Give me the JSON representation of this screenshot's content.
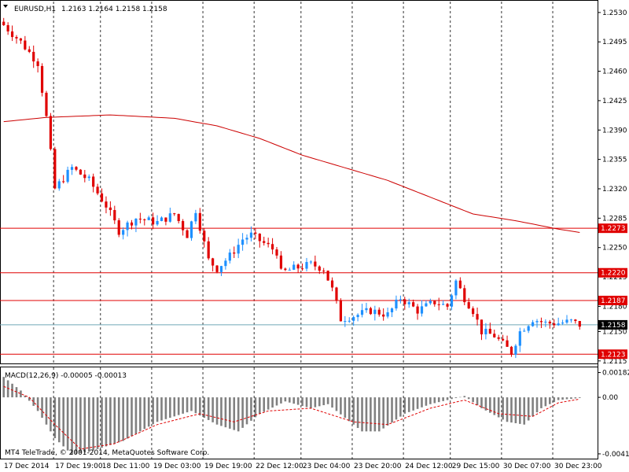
{
  "header": {
    "symbol": "EURUSD,H1",
    "ohlc": "1.2163 1.2164 1.2158 1.2158"
  },
  "macd": {
    "label": "MACD(12,26,9) -0.00005 -0.00013"
  },
  "footer": {
    "copyright": "MT4 TeleTrade, © 2001-2014, MetaQuotes Software Corp."
  },
  "colors": {
    "bull": "#1e90ff",
    "bear": "#e00000",
    "ma": "#cc0000",
    "level": "#e00000",
    "bid": "#6fa8b8",
    "hist": "#808080",
    "signal": "#e00000",
    "grid": "#000000"
  },
  "icons": {
    "dropdown": "triangle-down-icon"
  },
  "chart_data": [
    {
      "type": "candlestick",
      "title": "EURUSD,H1 1.2163 1.2164 1.2158 1.2158",
      "ylim": [
        1.2112,
        1.2543
      ],
      "y_ticks": [
        "1.2530",
        "1.2495",
        "1.2460",
        "1.2425",
        "1.2390",
        "1.2355",
        "1.2320",
        "1.2285",
        "1.2250",
        "1.2215",
        "1.2180",
        "1.2150",
        "1.2115"
      ],
      "x_ticks": [
        "17 Dec 2014",
        "17 Dec 19:00",
        "18 Dec 11:00",
        "19 Dec 03:00",
        "19 Dec 19:00",
        "22 Dec 12:00",
        "23 Dec 04:00",
        "23 Dec 20:00",
        "24 Dec 12:00",
        "29 Dec 15:00",
        "30 Dec 07:00",
        "30 Dec 23:00"
      ],
      "horizontal_levels": [
        "1.2273",
        "1.2220",
        "1.2187",
        "1.2123"
      ],
      "bid_price": "1.2158",
      "close_path": [
        [
          0,
          1.2515
        ],
        [
          4,
          1.2495
        ],
        [
          8,
          1.247
        ],
        [
          10,
          1.2405
        ],
        [
          12,
          1.232
        ],
        [
          16,
          1.2345
        ],
        [
          20,
          1.233
        ],
        [
          24,
          1.23
        ],
        [
          27,
          1.227
        ],
        [
          31,
          1.2285
        ],
        [
          36,
          1.228
        ],
        [
          40,
          1.229
        ],
        [
          43,
          1.2265
        ],
        [
          45,
          1.2295
        ],
        [
          48,
          1.2235
        ],
        [
          50,
          1.2225
        ],
        [
          53,
          1.224
        ],
        [
          56,
          1.226
        ],
        [
          58,
          1.2265
        ],
        [
          61,
          1.2255
        ],
        [
          64,
          1.2245
        ],
        [
          65,
          1.222
        ],
        [
          68,
          1.2225
        ],
        [
          72,
          1.223
        ],
        [
          75,
          1.2225
        ],
        [
          77,
          1.22
        ],
        [
          79,
          1.2165
        ],
        [
          83,
          1.217
        ],
        [
          86,
          1.2175
        ],
        [
          90,
          1.217
        ],
        [
          93,
          1.219
        ],
        [
          97,
          1.2175
        ],
        [
          101,
          1.2185
        ],
        [
          104,
          1.218
        ],
        [
          106,
          1.221
        ],
        [
          108,
          1.219
        ],
        [
          110,
          1.2175
        ],
        [
          112,
          1.215
        ],
        [
          115,
          1.2145
        ],
        [
          117,
          1.2135
        ],
        [
          119,
          1.2125
        ],
        [
          121,
          1.215
        ],
        [
          124,
          1.2165
        ],
        [
          127,
          1.216
        ],
        [
          130,
          1.216
        ],
        [
          133,
          1.2162
        ],
        [
          135,
          1.2158
        ]
      ],
      "ma_series": [
        [
          0,
          1.24
        ],
        [
          10,
          1.2405
        ],
        [
          25,
          1.2408
        ],
        [
          40,
          1.2404
        ],
        [
          50,
          1.2395
        ],
        [
          60,
          1.238
        ],
        [
          70,
          1.236
        ],
        [
          80,
          1.2345
        ],
        [
          90,
          1.233
        ],
        [
          100,
          1.231
        ],
        [
          110,
          1.229
        ],
        [
          120,
          1.2282
        ],
        [
          130,
          1.2272
        ],
        [
          135,
          1.2268
        ]
      ]
    },
    {
      "type": "bar",
      "title": "MACD(12,26,9) -0.00005 -0.00013",
      "ylim": [
        -0.0045,
        0.0022
      ],
      "y_ticks": [
        "0.00182",
        "0.00",
        "-0.00415"
      ],
      "histogram_path": [
        [
          0,
          0.0015
        ],
        [
          4,
          0.0005
        ],
        [
          8,
          -0.001
        ],
        [
          12,
          -0.003
        ],
        [
          16,
          -0.0042
        ],
        [
          20,
          -0.004
        ],
        [
          28,
          -0.0032
        ],
        [
          36,
          -0.0018
        ],
        [
          44,
          -0.001
        ],
        [
          50,
          -0.002
        ],
        [
          55,
          -0.0025
        ],
        [
          60,
          -0.0012
        ],
        [
          66,
          -0.0003
        ],
        [
          72,
          -0.0008
        ],
        [
          76,
          -0.0005
        ],
        [
          80,
          -0.0015
        ],
        [
          84,
          -0.0025
        ],
        [
          88,
          -0.0025
        ],
        [
          94,
          -0.0012
        ],
        [
          100,
          -0.0005
        ],
        [
          104,
          -0.0002
        ],
        [
          108,
          0.0001
        ],
        [
          112,
          -0.0008
        ],
        [
          118,
          -0.0018
        ],
        [
          122,
          -0.002
        ],
        [
          126,
          -0.0008
        ],
        [
          130,
          -0.0002
        ],
        [
          135,
          -5e-05
        ]
      ],
      "signal_path": [
        [
          0,
          0.0008
        ],
        [
          6,
          0.0
        ],
        [
          12,
          -0.002
        ],
        [
          18,
          -0.0038
        ],
        [
          26,
          -0.0034
        ],
        [
          36,
          -0.002
        ],
        [
          46,
          -0.0012
        ],
        [
          54,
          -0.0018
        ],
        [
          62,
          -0.001
        ],
        [
          72,
          -0.0008
        ],
        [
          82,
          -0.0018
        ],
        [
          90,
          -0.002
        ],
        [
          100,
          -0.0008
        ],
        [
          108,
          -0.0002
        ],
        [
          116,
          -0.0012
        ],
        [
          124,
          -0.0014
        ],
        [
          130,
          -0.0004
        ],
        [
          135,
          -0.00013
        ]
      ]
    }
  ]
}
